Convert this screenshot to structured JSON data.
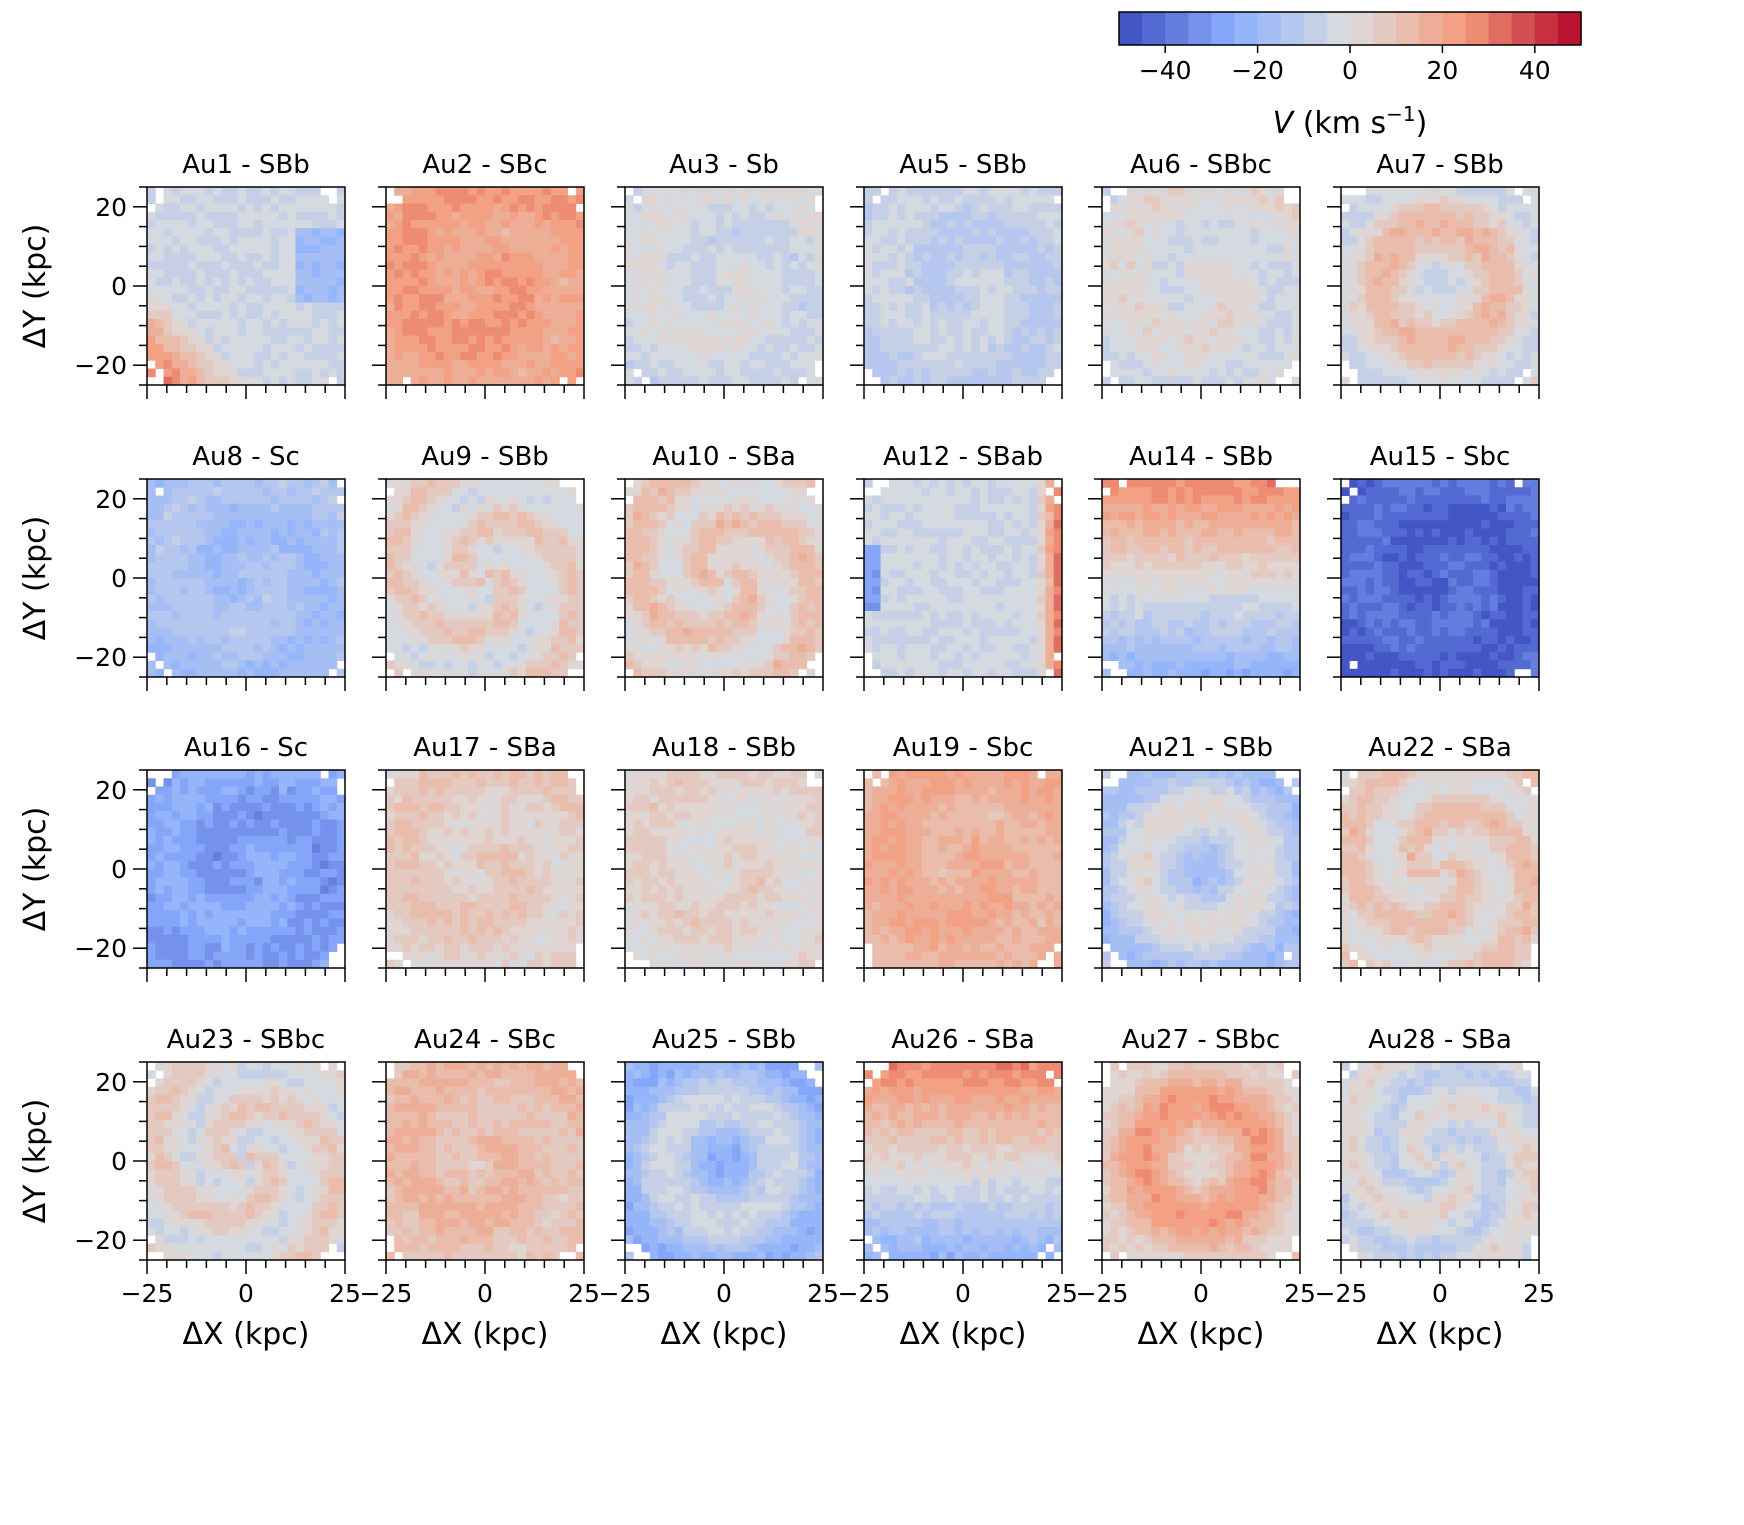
{
  "chart_data": {
    "type": "heatmap",
    "description_scale": "diverging blue-white-red",
    "colorbar": {
      "label_var": "V",
      "label_unit": " (km s",
      "label_exp": "−1",
      "label_close": ")",
      "vmin": -50,
      "vmax": 50,
      "levels": 20,
      "ticks": [
        -40,
        -20,
        0,
        20,
        40
      ],
      "tick_labels": [
        "−40",
        "−20",
        "0",
        "20",
        "40"
      ],
      "colors": [
        "#3b4cc0",
        "#b40426"
      ]
    },
    "xlabel": "ΔX (kpc)",
    "ylabel": "ΔY (kpc)",
    "xlim": [
      -25,
      25
    ],
    "ylim": [
      -25,
      25
    ],
    "x_ticks": [
      "−25",
      "0",
      "25"
    ],
    "y_ticks": [
      "−20",
      "0",
      "20"
    ],
    "panels": [
      {
        "title": "Au1 - SBb",
        "mean": -5,
        "pattern": "dipole_lower_left"
      },
      {
        "title": "Au2 - SBc",
        "mean": 22,
        "pattern": "uniform"
      },
      {
        "title": "Au3 - Sb",
        "mean": -3,
        "pattern": "uniform"
      },
      {
        "title": "Au5 - SBb",
        "mean": -8,
        "pattern": "uniform"
      },
      {
        "title": "Au6 - SBbc",
        "mean": -1,
        "pattern": "uniform"
      },
      {
        "title": "Au7 - SBb",
        "mean": 4,
        "pattern": "ring"
      },
      {
        "title": "Au8 - Sc",
        "mean": -16,
        "pattern": "uniform"
      },
      {
        "title": "Au9 - SBb",
        "mean": 3,
        "pattern": "spiral"
      },
      {
        "title": "Au10 - SBa",
        "mean": 6,
        "pattern": "spiral"
      },
      {
        "title": "Au12 - SBab",
        "mean": -4,
        "pattern": "dipole_left_right"
      },
      {
        "title": "Au14 - SBb",
        "mean": 2,
        "pattern": "top_red_bottom_blue"
      },
      {
        "title": "Au15 - Sbc",
        "mean": -43,
        "pattern": "uniform"
      },
      {
        "title": "Au16 - Sc",
        "mean": -28,
        "pattern": "uniform"
      },
      {
        "title": "Au17 - SBa",
        "mean": 6,
        "pattern": "uniform"
      },
      {
        "title": "Au18 - SBb",
        "mean": 3,
        "pattern": "uniform"
      },
      {
        "title": "Au19 - Sbc",
        "mean": 17,
        "pattern": "uniform"
      },
      {
        "title": "Au21 - SBb",
        "mean": -8,
        "pattern": "ring"
      },
      {
        "title": "Au22 - SBa",
        "mean": 6,
        "pattern": "spiral"
      },
      {
        "title": "Au23 - SBbc",
        "mean": 2,
        "pattern": "spiral"
      },
      {
        "title": "Au24 - SBc",
        "mean": 12,
        "pattern": "uniform"
      },
      {
        "title": "Au25 - SBb",
        "mean": -14,
        "pattern": "ring"
      },
      {
        "title": "Au26 - SBa",
        "mean": 3,
        "pattern": "top_red_bottom_blue"
      },
      {
        "title": "Au27 - SBbc",
        "mean": 14,
        "pattern": "ring"
      },
      {
        "title": "Au28 - SBa",
        "mean": -3,
        "pattern": "spiral"
      }
    ]
  }
}
